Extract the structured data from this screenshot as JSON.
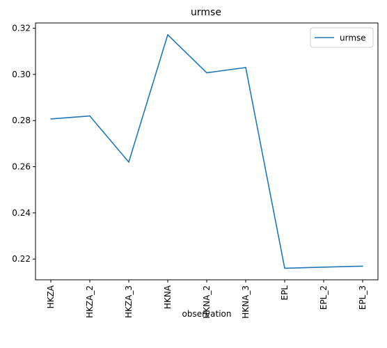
{
  "chart_data": {
    "type": "line",
    "title": "urmse",
    "xlabel": "observation",
    "ylabel": "",
    "categories": [
      "HKZA",
      "HKZA_2",
      "HKZA_3",
      "HKNA",
      "HKNA_2",
      "HKNA_3",
      "EPL",
      "EPL_2",
      "EPL_3"
    ],
    "series": [
      {
        "name": "urmse",
        "color": "#1f77b4",
        "values": [
          0.2807,
          0.282,
          0.262,
          0.3172,
          0.3007,
          0.303,
          0.216,
          0.2165,
          0.2169
        ]
      }
    ],
    "ylim": [
      0.211,
      0.3223
    ],
    "yticks": [
      "0.22",
      "0.24",
      "0.26",
      "0.28",
      "0.30",
      "0.32"
    ],
    "legend_position": "top-right",
    "grid": false
  }
}
